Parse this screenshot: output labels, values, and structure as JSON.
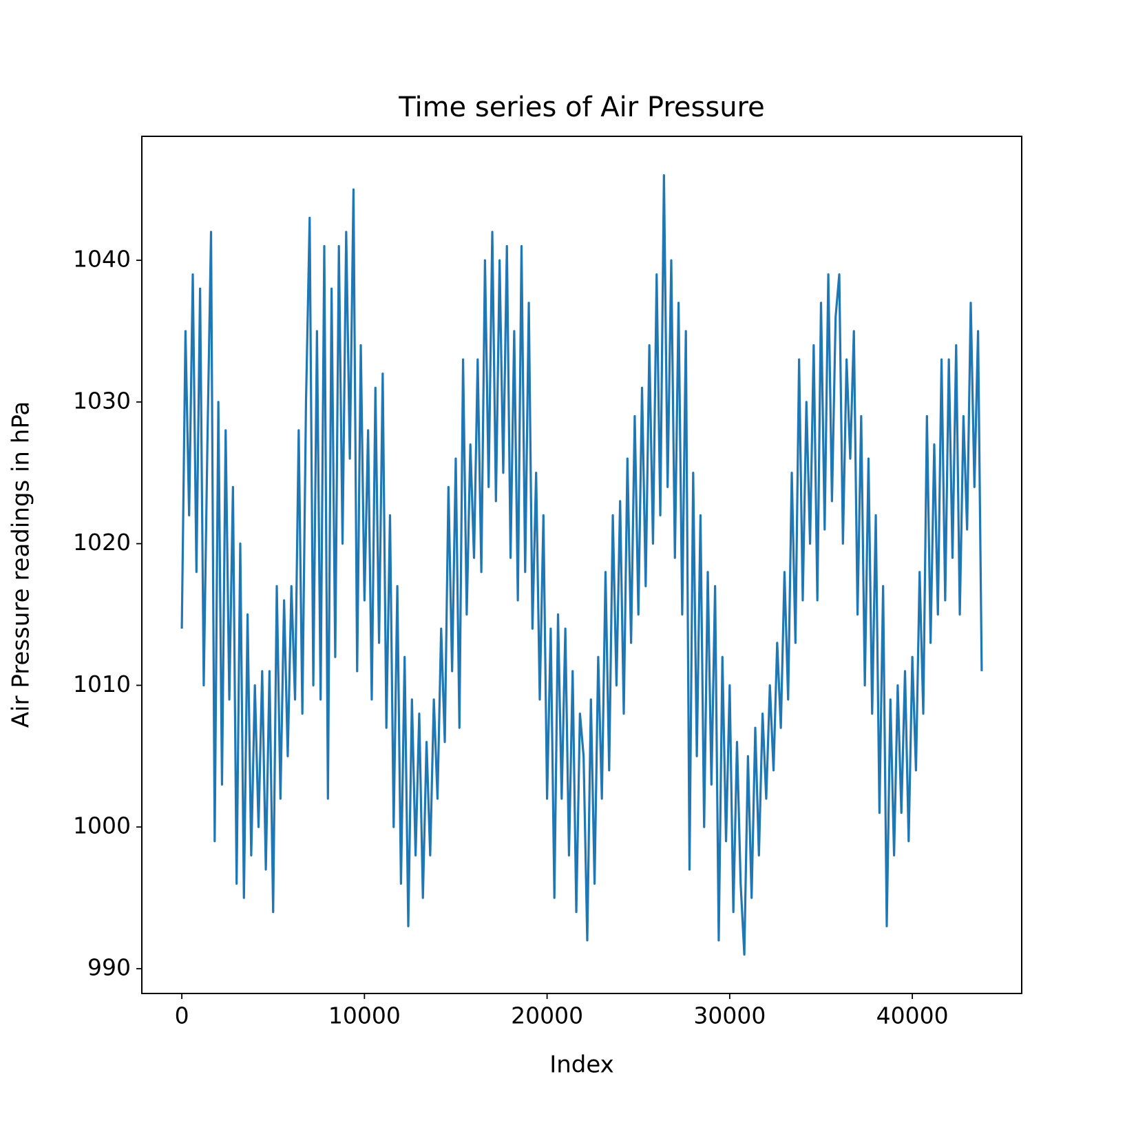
{
  "chart_data": {
    "type": "line",
    "title": "Time series of Air Pressure",
    "xlabel": "Index",
    "ylabel": "Air Pressure readings in hPa",
    "color": "#1f77b4",
    "x": [
      0,
      200,
      400,
      600,
      800,
      1000,
      1200,
      1400,
      1600,
      1800,
      2000,
      2200,
      2400,
      2600,
      2800,
      3000,
      3200,
      3400,
      3600,
      3800,
      4000,
      4200,
      4400,
      4600,
      4800,
      5000,
      5200,
      5400,
      5600,
      5800,
      6000,
      6200,
      6400,
      6600,
      6800,
      7000,
      7200,
      7400,
      7600,
      7800,
      8000,
      8200,
      8400,
      8600,
      8800,
      9000,
      9200,
      9400,
      9600,
      9800,
      10000,
      10200,
      10400,
      10600,
      10800,
      11000,
      11200,
      11400,
      11600,
      11800,
      12000,
      12200,
      12400,
      12600,
      12800,
      13000,
      13200,
      13400,
      13600,
      13800,
      14000,
      14200,
      14400,
      14600,
      14800,
      15000,
      15200,
      15400,
      15600,
      15800,
      16000,
      16200,
      16400,
      16600,
      16800,
      17000,
      17200,
      17400,
      17600,
      17800,
      18000,
      18200,
      18400,
      18600,
      18800,
      19000,
      19200,
      19400,
      19600,
      19800,
      20000,
      20200,
      20400,
      20600,
      20800,
      21000,
      21200,
      21400,
      21600,
      21800,
      22000,
      22200,
      22400,
      22600,
      22800,
      23000,
      23200,
      23400,
      23600,
      23800,
      24000,
      24200,
      24400,
      24600,
      24800,
      25000,
      25200,
      25400,
      25600,
      25800,
      26000,
      26200,
      26400,
      26600,
      26800,
      27000,
      27200,
      27400,
      27600,
      27800,
      28000,
      28200,
      28400,
      28600,
      28800,
      29000,
      29200,
      29400,
      29600,
      29800,
      30000,
      30200,
      30400,
      30600,
      30800,
      31000,
      31200,
      31400,
      31600,
      31800,
      32000,
      32200,
      32400,
      32600,
      32800,
      33000,
      33200,
      33400,
      33600,
      33800,
      34000,
      34200,
      34400,
      34600,
      34800,
      35000,
      35200,
      35400,
      35600,
      35800,
      36000,
      36200,
      36400,
      36600,
      36800,
      37000,
      37200,
      37400,
      37600,
      37800,
      38000,
      38200,
      38400,
      38600,
      38800,
      39000,
      39200,
      39400,
      39600,
      39800,
      40000,
      40200,
      40400,
      40600,
      40800,
      41000,
      41200,
      41400,
      41600,
      41800,
      42000,
      42200,
      42400,
      42600,
      42800,
      43000,
      43200,
      43400,
      43600,
      43800
    ],
    "values": [
      1014,
      1035,
      1022,
      1039,
      1018,
      1038,
      1010,
      1027,
      1042,
      999,
      1030,
      1003,
      1028,
      1009,
      1024,
      996,
      1020,
      995,
      1015,
      998,
      1010,
      1000,
      1011,
      997,
      1011,
      994,
      1017,
      1002,
      1016,
      1005,
      1017,
      1009,
      1028,
      1008,
      1030,
      1043,
      1010,
      1035,
      1009,
      1041,
      1002,
      1038,
      1012,
      1041,
      1020,
      1042,
      1026,
      1045,
      1011,
      1034,
      1016,
      1028,
      1009,
      1031,
      1013,
      1032,
      1007,
      1022,
      1000,
      1017,
      996,
      1012,
      993,
      1009,
      998,
      1008,
      995,
      1006,
      998,
      1009,
      1002,
      1014,
      1006,
      1024,
      1011,
      1026,
      1007,
      1033,
      1015,
      1027,
      1019,
      1033,
      1018,
      1040,
      1024,
      1042,
      1023,
      1040,
      1025,
      1041,
      1019,
      1035,
      1016,
      1041,
      1018,
      1037,
      1014,
      1025,
      1009,
      1022,
      1002,
      1014,
      995,
      1015,
      1002,
      1014,
      998,
      1011,
      994,
      1008,
      1005,
      992,
      1009,
      996,
      1012,
      1002,
      1018,
      1004,
      1022,
      1010,
      1023,
      1008,
      1026,
      1013,
      1029,
      1015,
      1031,
      1017,
      1034,
      1020,
      1039,
      1022,
      1046,
      1024,
      1040,
      1019,
      1037,
      1015,
      1035,
      997,
      1025,
      1005,
      1022,
      1000,
      1018,
      1003,
      1017,
      992,
      1012,
      999,
      1010,
      994,
      1006,
      996,
      991,
      1005,
      995,
      1007,
      998,
      1008,
      1002,
      1010,
      1004,
      1013,
      1007,
      1018,
      1009,
      1025,
      1013,
      1033,
      1016,
      1030,
      1020,
      1034,
      1016,
      1037,
      1021,
      1039,
      1023,
      1036,
      1039,
      1020,
      1033,
      1026,
      1035,
      1015,
      1029,
      1010,
      1026,
      1008,
      1022,
      1001,
      1017,
      993,
      1009,
      998,
      1010,
      1001,
      1011,
      999,
      1012,
      1004,
      1018,
      1008,
      1029,
      1013,
      1027,
      1015,
      1033,
      1016,
      1033,
      1019,
      1034,
      1015,
      1029,
      1021,
      1037,
      1024,
      1035,
      1011
    ],
    "xlim": [
      -2190,
      45990
    ],
    "ylim": [
      988.25,
      1048.75
    ],
    "xticks": [
      0,
      10000,
      20000,
      30000,
      40000
    ],
    "yticks": [
      990,
      1000,
      1010,
      1020,
      1030,
      1040
    ]
  }
}
